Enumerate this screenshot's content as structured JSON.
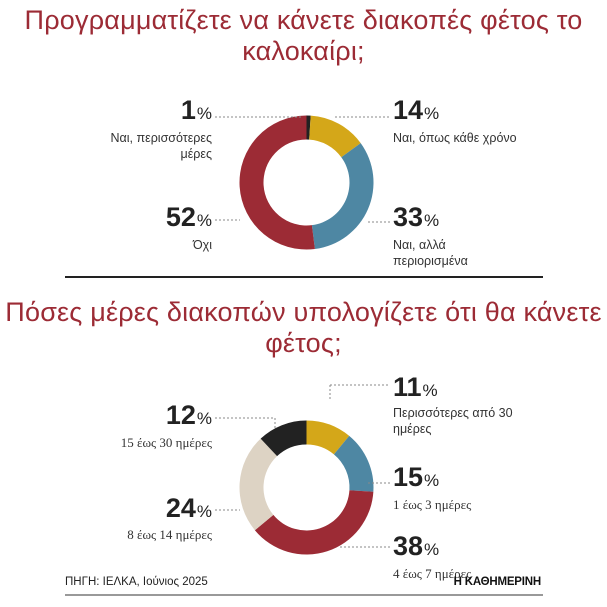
{
  "chart_data": [
    {
      "type": "pie",
      "title": "Προγραμματίζετε να κάνετε διακοπές φέτος το καλοκαίρι;",
      "slices": [
        {
          "value": 1,
          "value_label": "1",
          "label": "Ναι, περισσότερες μέρες",
          "color": "#222222"
        },
        {
          "value": 14,
          "value_label": "14",
          "label": "Ναι, όπως κάθε χρόνο",
          "color": "#d4a719"
        },
        {
          "value": 33,
          "value_label": "33",
          "label": "Ναι, αλλά περιορισμένα",
          "color": "#4e87a3"
        },
        {
          "value": 52,
          "value_label": "52",
          "label": "Όχι",
          "color": "#9c2b35"
        }
      ],
      "unit": "%"
    },
    {
      "type": "pie",
      "title": "Πόσες μέρες διακοπών υπολογίζετε ότι θα κάνετε φέτος;",
      "slices": [
        {
          "value": 11,
          "value_label": "11",
          "label": "Περισσότερες από 30 ημέρες",
          "color": "#d4a719"
        },
        {
          "value": 15,
          "value_label": "15",
          "label": "1 έως 3 ημέρες",
          "color": "#4e87a3"
        },
        {
          "value": 38,
          "value_label": "38",
          "label": "4 έως 7 ημέρες",
          "color": "#9c2b35"
        },
        {
          "value": 24,
          "value_label": "24",
          "label": "8 έως 14 ημέρες",
          "color": "#ddd3c4"
        },
        {
          "value": 12,
          "value_label": "12",
          "label": "15 έως 30 ημέρες",
          "color": "#222222"
        }
      ],
      "unit": "%"
    }
  ],
  "footer": {
    "source": "ΠΗΓΗ: ΙΕΛΚΑ, Ιούνιος 2025",
    "brand": "Η ΚΑΘΗΜΕΡΙΝΗ"
  }
}
